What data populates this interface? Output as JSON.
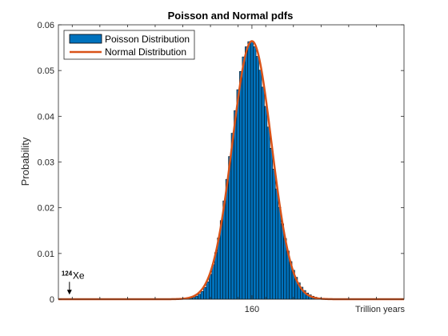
{
  "colors": {
    "bar_fill": "#0072BD",
    "bar_edge": "#000000",
    "line": "#D95319",
    "axis": "#262626",
    "background": "#FFFFFF"
  },
  "chart_data": {
    "type": "bar",
    "title": "Poisson and Normal pdfs",
    "xlabel": "",
    "ylabel": "Probability",
    "xlim": [
      90,
      215
    ],
    "ylim": [
      0,
      0.06
    ],
    "x_tick_values": [
      160
    ],
    "x_tick_labels": [
      "160"
    ],
    "x_axis_unit_label": "Trillion years",
    "y_tick_values": [
      0,
      0.01,
      0.02,
      0.03,
      0.04,
      0.05,
      0.06
    ],
    "y_tick_labels": [
      "0",
      "0.01",
      "0.02",
      "0.03",
      "0.04",
      "0.05",
      "0.06"
    ],
    "grid": false,
    "legend_position": "top-left",
    "legend": [
      "Poisson Distribution",
      "Normal Distribution"
    ],
    "series": [
      {
        "name": "Poisson Distribution",
        "type": "bar",
        "distribution": "poisson",
        "lambda": 50,
        "x_start": 108,
        "x_end": 215,
        "x_offset": 110,
        "color": "#0072BD"
      },
      {
        "name": "Normal Distribution",
        "type": "line",
        "distribution": "normal",
        "mu": 160,
        "sigma": 7.07,
        "x_start": 90,
        "x_end": 215,
        "color": "#D95319"
      }
    ],
    "annotations": [
      {
        "superscript": "124",
        "text": "Xe",
        "x": 94,
        "y": 0.001,
        "arrow": "down"
      }
    ]
  }
}
